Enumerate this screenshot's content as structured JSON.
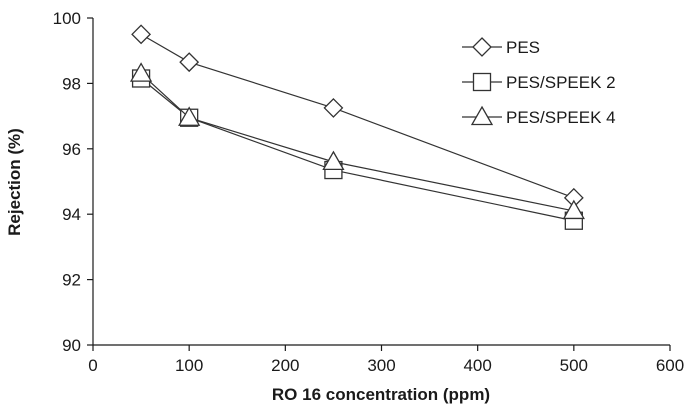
{
  "chart_data": {
    "type": "line",
    "title": "",
    "xlabel": "RO 16 concentration (ppm)",
    "ylabel": "Rejection (%)",
    "xlim": [
      0,
      600
    ],
    "ylim": [
      90,
      100
    ],
    "x_ticks": [
      0,
      100,
      200,
      300,
      400,
      500,
      600
    ],
    "y_ticks": [
      90,
      92,
      94,
      96,
      98,
      100
    ],
    "grid": false,
    "legend_position": "top-right",
    "series": [
      {
        "name": "PES",
        "marker": "diamond",
        "color": "#333333",
        "x": [
          50,
          100,
          250,
          500
        ],
        "y": [
          99.5,
          98.65,
          97.25,
          94.5
        ]
      },
      {
        "name": "PES/SPEEK 2",
        "marker": "square",
        "color": "#333333",
        "x": [
          50,
          100,
          250,
          500
        ],
        "y": [
          98.15,
          96.95,
          95.35,
          93.8
        ]
      },
      {
        "name": "PES/SPEEK 4",
        "marker": "triangle",
        "color": "#333333",
        "x": [
          50,
          100,
          250,
          500
        ],
        "y": [
          98.3,
          96.95,
          95.6,
          94.1
        ]
      }
    ]
  }
}
